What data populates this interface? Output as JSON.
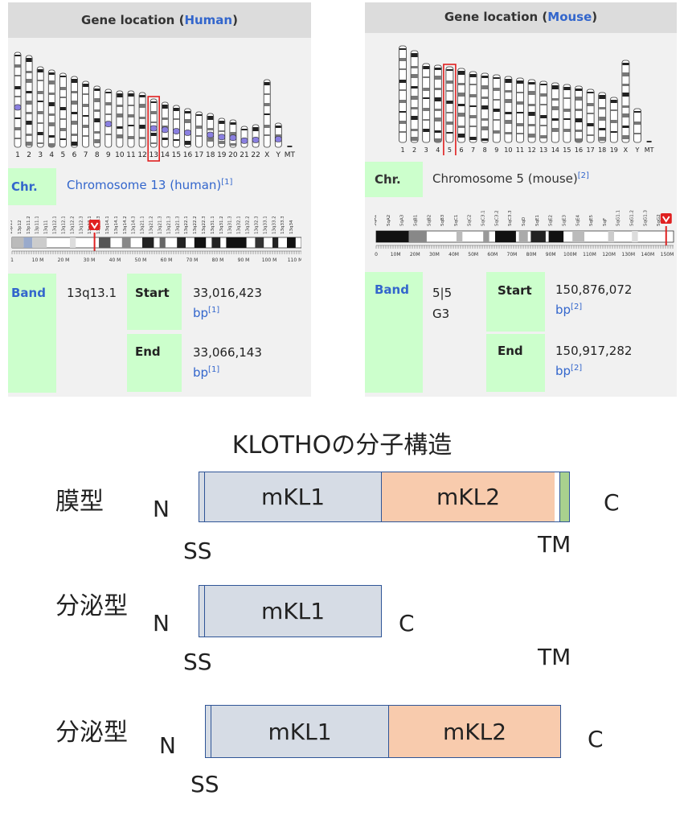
{
  "human": {
    "header_prefix": "Gene location (",
    "header_species": "Human",
    "header_suffix": ")",
    "chromosome_labels": [
      "1",
      "2",
      "3",
      "4",
      "5",
      "6",
      "7",
      "8",
      "9",
      "10",
      "11",
      "12",
      "13",
      "14",
      "15",
      "16",
      "17",
      "18",
      "19",
      "20",
      "21",
      "22",
      "X",
      "Y",
      "MT"
    ],
    "highlighted_chromosome": "13",
    "chr_label": "Chr.",
    "chr_value": "Chromosome 13 (human)",
    "chr_ref": "[1]",
    "band_map_labels": [
      "13p13",
      "13p12",
      "13p11.2",
      "13p11.1",
      "13q11",
      "13q12.11",
      "13q12.13",
      "13q12.2",
      "13q12.3",
      "13q13.1",
      "13q13.3",
      "13q14.11",
      "13q14.13",
      "13q14.2",
      "13q14.3",
      "13q21.1",
      "13q21.2",
      "13q21.31",
      "13q21.32",
      "13q21.33",
      "13q22.1",
      "13q22.2",
      "13q22.3",
      "13q31.1",
      "13q31.2",
      "13q31.3",
      "13q32.1",
      "13q32.2",
      "13q32.3",
      "13q33.1",
      "13q33.2",
      "13q33.3",
      "13q34"
    ],
    "ruler_labels": [
      "1",
      "10 M",
      "20 M",
      "30 M",
      "40 M",
      "50 M",
      "60 M",
      "70 M",
      "80 M",
      "90 M",
      "100 M",
      "110 M"
    ],
    "band_title": "Band",
    "band_value": "13q13.1",
    "start_label": "Start",
    "start_value": "33,016,423",
    "end_label": "End",
    "end_value": "33,066,143",
    "unit": "bp",
    "unit_ref": "[1]"
  },
  "mouse": {
    "header_prefix": "Gene location (",
    "header_species": "Mouse",
    "header_suffix": ")",
    "chromosome_labels": [
      "1",
      "2",
      "3",
      "4",
      "5",
      "6",
      "7",
      "8",
      "9",
      "10",
      "11",
      "12",
      "13",
      "14",
      "15",
      "16",
      "17",
      "18",
      "19",
      "X",
      "Y",
      "MT"
    ],
    "highlighted_chromosome": "5",
    "chr_label": "Chr.",
    "chr_value": "Chromosome 5 (mouse)",
    "chr_ref": "[2]",
    "band_map_labels": [
      "5qA1",
      "5qA2",
      "5qA3",
      "5qB1",
      "5qB2",
      "5qB3",
      "5qC1",
      "5qC2",
      "5qC3.1",
      "5qC3.2",
      "5qC3.3",
      "5qD",
      "5qE1",
      "5qE2",
      "5qE3",
      "5qE4",
      "5qE5",
      "5qF",
      "5qG1.1",
      "5qG1.2",
      "5qG1.3",
      "5qG2"
    ],
    "ruler_labels": [
      "0",
      "10M",
      "20M",
      "30M",
      "40M",
      "50M",
      "60M",
      "70M",
      "80M",
      "90M",
      "100M",
      "110M",
      "120M",
      "130M",
      "140M",
      "150M"
    ],
    "band_title": "Band",
    "band_value_line1": "5|5",
    "band_value_line2": "G3",
    "start_label": "Start",
    "start_value": "150,876,072",
    "end_label": "End",
    "end_value": "150,917,282",
    "unit": "bp",
    "unit_ref": "[2]"
  },
  "diagram": {
    "title": "KLOTHOの分子構造",
    "rows": [
      {
        "label": "膜型",
        "n": "N",
        "c": "C",
        "ss": "SS",
        "tm": "TM",
        "domains": [
          "mKL1",
          "mKL2"
        ]
      },
      {
        "label": "分泌型",
        "n": "N",
        "c": "C",
        "ss": "SS",
        "tm": "TM",
        "domains": [
          "mKL1"
        ]
      },
      {
        "label": "分泌型",
        "n": "N",
        "c": "C",
        "ss": "SS",
        "domains": [
          "mKL1",
          "mKL2"
        ]
      }
    ],
    "colors": {
      "kl1": "#d6dce5",
      "kl2": "#f8cbad",
      "tm": "#a9d18e",
      "border": "#2f5597"
    }
  }
}
